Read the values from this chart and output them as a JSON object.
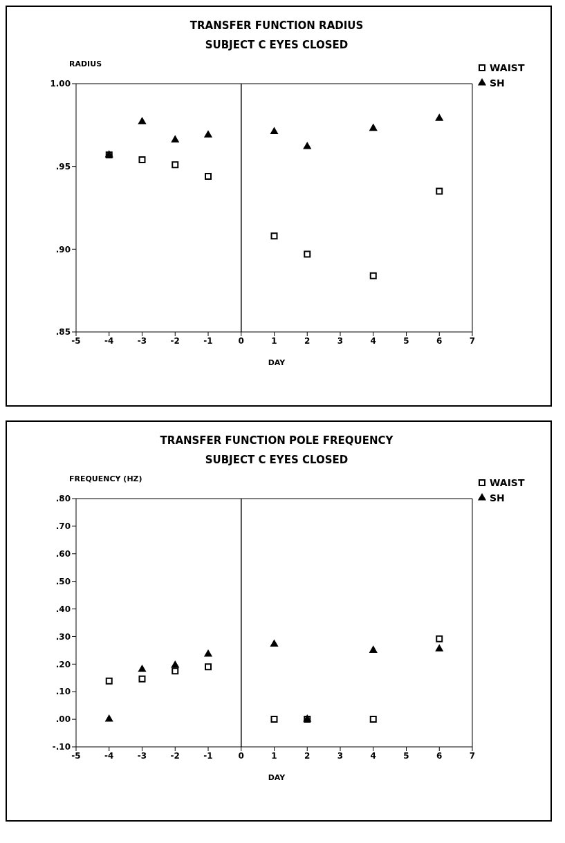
{
  "chart_data": [
    {
      "type": "scatter",
      "title": "TRANSFER FUNCTION RADIUS",
      "subtitle": "SUBJECT C EYES CLOSED",
      "xlabel": "DAY",
      "ylabel": "RADIUS",
      "xlim": [
        -5,
        7
      ],
      "xticks": [
        -5,
        -4,
        -3,
        -2,
        -1,
        0,
        1,
        2,
        3,
        4,
        5,
        6,
        7
      ],
      "ylim": [
        0.85,
        1.0
      ],
      "yticks": [
        {
          "value": 0.85,
          "label": ".85"
        },
        {
          "value": 0.9,
          "label": ".90"
        },
        {
          "value": 0.95,
          "label": ".95"
        },
        {
          "value": 1.0,
          "label": "1.00"
        }
      ],
      "grid": false,
      "legend": "top right",
      "ref_lines": [
        {
          "axis": "x",
          "value": 0,
          "color": "#000000"
        }
      ],
      "series": [
        {
          "name": "WAIST",
          "color": "#000000",
          "marker": "square",
          "x": [
            -3,
            -2,
            -1,
            -4,
            1,
            2,
            4,
            6
          ],
          "values": [
            0.954,
            0.951,
            0.944,
            0.957,
            0.908,
            0.897,
            0.884,
            0.935
          ]
        },
        {
          "name": "SH",
          "color": "#000000",
          "marker": "triangle",
          "x": [
            -3,
            -2,
            -1,
            -4,
            2,
            1,
            4,
            6
          ],
          "values": [
            0.977,
            0.966,
            0.969,
            0.957,
            0.962,
            0.971,
            0.973,
            0.979
          ]
        }
      ]
    },
    {
      "type": "scatter",
      "title": "TRANSFER FUNCTION POLE FREQUENCY",
      "subtitle": "SUBJECT C EYES CLOSED",
      "xlabel": "DAY",
      "ylabel": "FREQUENCY (HZ)",
      "xlim": [
        -5,
        7
      ],
      "xticks": [
        -5,
        -4,
        -3,
        -2,
        -1,
        0,
        1,
        2,
        3,
        4,
        5,
        6,
        7
      ],
      "ylim": [
        -0.1,
        0.8
      ],
      "yticks": [
        {
          "value": -0.1,
          "label": "-.10"
        },
        {
          "value": 0,
          "label": ".00"
        },
        {
          "value": 0.1,
          "label": ".10"
        },
        {
          "value": 0.2,
          "label": ".20"
        },
        {
          "value": 0.3,
          "label": ".30"
        },
        {
          "value": 0.4,
          "label": ".40"
        },
        {
          "value": 0.5,
          "label": ".50"
        },
        {
          "value": 0.6,
          "label": ".60"
        },
        {
          "value": 0.7,
          "label": ".70"
        },
        {
          "value": 0.8,
          "label": ".80"
        }
      ],
      "grid": false,
      "legend": "top right",
      "ref_lines": [
        {
          "axis": "x",
          "value": 0,
          "color": "#000000"
        }
      ],
      "series": [
        {
          "name": "WAIST",
          "color": "#000000",
          "marker": "square",
          "x": [
            -4,
            -3,
            -2,
            -1,
            1,
            2,
            4,
            6
          ],
          "values": [
            0.139,
            0.146,
            0.175,
            0.19,
            0.0,
            0.0,
            0.0,
            0.292
          ]
        },
        {
          "name": "SH",
          "color": "#000000",
          "marker": "triangle",
          "x": [
            -4,
            -3,
            -2,
            -1,
            2,
            1,
            4,
            6
          ],
          "values": [
            0.0,
            0.181,
            0.196,
            0.236,
            0.0,
            0.272,
            0.25,
            0.255
          ]
        }
      ]
    }
  ]
}
